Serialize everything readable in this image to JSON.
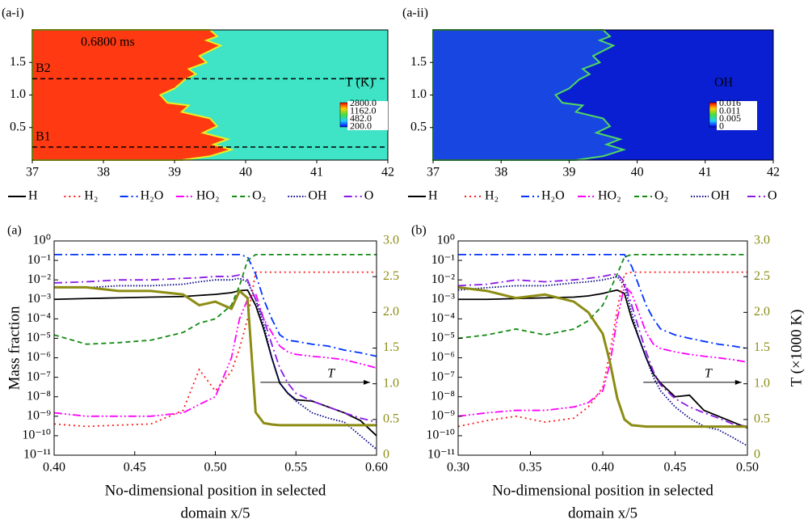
{
  "chart_data": [
    {
      "type": "contour",
      "panel_label": "(a-i)",
      "annotation": "0.6800 ms",
      "xlim": [
        37,
        42
      ],
      "xticks": [
        37,
        38,
        39,
        40,
        41,
        42
      ],
      "ylim": [
        0,
        2
      ],
      "yticks": [
        {
          "value": 0.5,
          "label": "0.5"
        },
        {
          "value": 1,
          "label": "1.0"
        },
        {
          "value": 1.5,
          "label": "1.5"
        }
      ],
      "colors": {
        "burnt": "#ff3a12",
        "unburnt": "#3fe3c6",
        "front": "#e8f020"
      },
      "lines": [
        {
          "label": "B2",
          "y": 1.25
        },
        {
          "label": "B1",
          "y": 0.2
        }
      ],
      "colorbar": {
        "title": "T (K)",
        "labels": [
          "2800.0",
          "1162.0",
          "482.0",
          "200.0"
        ]
      }
    },
    {
      "type": "contour",
      "panel_label": "(a-ii)",
      "xlim": [
        37,
        42
      ],
      "xticks": [
        37,
        38,
        39,
        40,
        41,
        42
      ],
      "ylim": [
        0,
        2
      ],
      "yticks": [
        {
          "value": 0.5,
          "label": "0.5"
        },
        {
          "value": 1,
          "label": "1.0"
        },
        {
          "value": 1.5,
          "label": "1.5"
        }
      ],
      "colors": {
        "burnt": "#1746e0",
        "unburnt": "#0a1fd2",
        "front": "#52d860"
      },
      "colorbar": {
        "title": "OH",
        "labels": [
          "0.016",
          "0.011",
          "0.005",
          "0"
        ]
      }
    },
    {
      "type": "line",
      "panel_label": "(a)",
      "ylabel": "Mass fraction",
      "xlabel": [
        "No-dimensional position in selected",
        "domain x/5"
      ],
      "annotation": "T",
      "x": [
        0.4,
        0.42,
        0.44,
        0.46,
        0.48,
        0.49,
        0.5,
        0.51,
        0.515,
        0.52,
        0.525,
        0.53,
        0.535,
        0.54,
        0.545,
        0.55,
        0.56,
        0.57,
        0.58,
        0.59,
        0.6
      ],
      "xlim": [
        0.4,
        0.6
      ],
      "xticks": [
        {
          "value": 0.4,
          "label": "0.40"
        },
        {
          "value": 0.45,
          "label": "0.45"
        },
        {
          "value": 0.5,
          "label": "0.50"
        },
        {
          "value": 0.55,
          "label": "0.55"
        },
        {
          "value": 0.6,
          "label": "0.60"
        }
      ],
      "ylog": true,
      "ylim": [
        1e-11,
        1
      ],
      "yticks": [
        {
          "value": 1,
          "label": "10⁰"
        },
        {
          "value": 0.1,
          "label": "10⁻¹"
        },
        {
          "value": 0.01,
          "label": "10⁻²"
        },
        {
          "value": 0.001,
          "label": "10⁻³"
        },
        {
          "value": 0.0001,
          "label": "10⁻⁴"
        },
        {
          "value": 1e-05,
          "label": "10⁻⁵"
        },
        {
          "value": 1e-06,
          "label": "10⁻⁶"
        },
        {
          "value": 1e-07,
          "label": "10⁻⁷"
        },
        {
          "value": 1e-08,
          "label": "10⁻⁸"
        },
        {
          "value": 1e-09,
          "label": "10⁻⁹"
        },
        {
          "value": 1e-10,
          "label": "10⁻¹⁰"
        },
        {
          "value": 1e-11,
          "label": "10⁻¹¹"
        }
      ],
      "y2lim": [
        0,
        3
      ],
      "y2ticks": [
        0,
        0.5,
        {
          "value": 1,
          "label": "1.0"
        },
        1.5,
        {
          "value": 2,
          "label": "2.0"
        },
        2.5,
        {
          "value": 3,
          "label": "3.0"
        }
      ],
      "series": [
        {
          "name": "H",
          "color": "#000000",
          "dash": "solid",
          "values": [
            0.001,
            0.0011,
            0.0012,
            0.0013,
            0.0014,
            0.0016,
            0.0018,
            0.0022,
            0.0028,
            0.003,
            0.0005,
            3e-05,
            1e-06,
            5e-08,
            1.5e-08,
            7e-09,
            6e-09,
            3e-09,
            1.5e-09,
            6e-10,
            1e-10
          ]
        },
        {
          "name": "H₂",
          "color": "#ff1a1a",
          "dash": "dot",
          "values": [
            4e-10,
            3e-10,
            3.5e-10,
            4e-10,
            2e-09,
            2.5e-07,
            2e-08,
            2e-07,
            3e-06,
            0.0001,
            0.025,
            0.025,
            0.025,
            0.025,
            0.025,
            0.025,
            0.025,
            0.025,
            0.025,
            0.025,
            0.025
          ]
        },
        {
          "name": "H₂O",
          "color": "#0033ff",
          "dash": "dashdot",
          "values": [
            0.2,
            0.2,
            0.2,
            0.2,
            0.2,
            0.2,
            0.2,
            0.2,
            0.2,
            0.15,
            0.02,
            0.001,
            0.0001,
            1.5e-05,
            8e-06,
            7e-06,
            5e-06,
            4e-06,
            2.5e-06,
            1.8e-06,
            1.2e-06
          ]
        },
        {
          "name": "HO₂",
          "color": "#ff00ff",
          "dash": "dashdotdot",
          "values": [
            1.5e-09,
            1e-09,
            1e-09,
            1e-09,
            1.5e-09,
            4e-09,
            1e-08,
            1e-06,
            0.0001,
            0.001,
            0.002,
            0.0001,
            2e-05,
            4e-06,
            2e-06,
            1.5e-06,
            1.2e-06,
            1e-06,
            8e-07,
            5e-07,
            3e-07
          ]
        },
        {
          "name": "O₂",
          "color": "#138a13",
          "dash": "dash",
          "values": [
            1.5e-05,
            5e-06,
            6e-06,
            8e-06,
            2e-05,
            6e-05,
            0.0001,
            0.0005,
            0.005,
            0.1,
            0.2,
            0.2,
            0.2,
            0.2,
            0.2,
            0.2,
            0.2,
            0.2,
            0.2,
            0.2,
            0.2
          ]
        },
        {
          "name": "OH",
          "color": "#000080",
          "dash": "finedot",
          "values": [
            0.004,
            0.004,
            0.005,
            0.005,
            0.006,
            0.008,
            0.01,
            0.01,
            0.012,
            0.008,
            0.001,
            5e-05,
            1e-06,
            5e-08,
            1.5e-08,
            6e-09,
            1.5e-09,
            8e-10,
            5e-10,
            1e-10,
            2e-11
          ]
        },
        {
          "name": "O",
          "color": "#8a1ae6",
          "dash": "dashdot",
          "values": [
            0.007,
            0.008,
            0.01,
            0.01,
            0.012,
            0.013,
            0.015,
            0.015,
            0.018,
            0.01,
            0.001,
            0.0001,
            5e-06,
            3e-07,
            5e-08,
            1.5e-08,
            6e-09,
            3e-09,
            1.5e-09,
            8e-10,
            5e-10
          ]
        },
        {
          "color": "#8c8c14",
          "dash": "thick",
          "axis": "y2",
          "values": [
            2.35,
            2.35,
            2.3,
            2.3,
            2.25,
            2.1,
            2.15,
            2.05,
            2.3,
            2.2,
            0.6,
            0.45,
            0.43,
            0.42,
            0.42,
            0.42,
            0.42,
            0.42,
            0.42,
            0.42,
            0.42
          ]
        }
      ]
    },
    {
      "type": "line",
      "panel_label": "(b)",
      "xlabel": [
        "No-dimensional position in selected",
        "domain x/5"
      ],
      "y2label": "T (×1000 K)",
      "annotation": "T",
      "x": [
        0.3,
        0.32,
        0.34,
        0.36,
        0.38,
        0.39,
        0.4,
        0.405,
        0.41,
        0.415,
        0.42,
        0.425,
        0.43,
        0.435,
        0.44,
        0.45,
        0.46,
        0.47,
        0.48,
        0.49,
        0.5
      ],
      "xlim": [
        0.3,
        0.5
      ],
      "xticks": [
        {
          "value": 0.3,
          "label": "0.30"
        },
        {
          "value": 0.35,
          "label": "0.35"
        },
        {
          "value": 0.4,
          "label": "0.40"
        },
        {
          "value": 0.45,
          "label": "0.45"
        },
        {
          "value": 0.5,
          "label": "0.50"
        }
      ],
      "ylog": true,
      "ylim": [
        1e-11,
        1
      ],
      "yticks": [
        {
          "value": 1,
          "label": "10⁰"
        },
        {
          "value": 0.1,
          "label": "10⁻¹"
        },
        {
          "value": 0.01,
          "label": "10⁻²"
        },
        {
          "value": 0.001,
          "label": "10⁻³"
        },
        {
          "value": 0.0001,
          "label": "10⁻⁴"
        },
        {
          "value": 1e-05,
          "label": "10⁻⁵"
        },
        {
          "value": 1e-06,
          "label": "10⁻⁶"
        },
        {
          "value": 1e-07,
          "label": "10⁻⁷"
        },
        {
          "value": 1e-08,
          "label": "10⁻⁸"
        },
        {
          "value": 1e-09,
          "label": "10⁻⁹"
        },
        {
          "value": 1e-10,
          "label": "10⁻¹⁰"
        },
        {
          "value": 1e-11,
          "label": "10⁻¹¹"
        }
      ],
      "y2lim": [
        0,
        3
      ],
      "y2ticks": [
        0,
        0.5,
        {
          "value": 1,
          "label": "1.0"
        },
        1.5,
        {
          "value": 2,
          "label": "2.0"
        },
        2.5,
        {
          "value": 3,
          "label": "3.0"
        }
      ],
      "series": [
        {
          "name": "H",
          "color": "#000000",
          "dash": "solid",
          "values": [
            0.001,
            0.001,
            0.0011,
            0.0012,
            0.0013,
            0.0015,
            0.002,
            0.0025,
            0.003,
            0.002,
            0.0001,
            1e-05,
            1e-06,
            1.5e-07,
            5e-08,
            1e-08,
            1.2e-08,
            2e-09,
            1e-09,
            5e-10,
            2.5e-10
          ]
        },
        {
          "name": "H₂",
          "color": "#ff1a1a",
          "dash": "dot",
          "values": [
            3e-10,
            6e-10,
            1e-09,
            5e-10,
            8e-10,
            3e-09,
            3e-08,
            2e-06,
            0.0003,
            0.02,
            0.025,
            0.025,
            0.025,
            0.025,
            0.025,
            0.025,
            0.025,
            0.025,
            0.025,
            0.025,
            0.025
          ]
        },
        {
          "name": "H₂O",
          "color": "#0033ff",
          "dash": "dashdot",
          "values": [
            0.2,
            0.2,
            0.2,
            0.2,
            0.2,
            0.2,
            0.2,
            0.2,
            0.2,
            0.2,
            0.05,
            0.005,
            0.0005,
            0.0001,
            3e-05,
            1.5e-05,
            1e-05,
            7e-06,
            5e-06,
            4e-06,
            3e-06
          ]
        },
        {
          "name": "HO₂",
          "color": "#ff00ff",
          "dash": "dashdotdot",
          "values": [
            1e-09,
            1.5e-09,
            2e-09,
            2e-09,
            3e-09,
            5e-09,
            2e-08,
            5e-07,
            0.0001,
            0.005,
            0.002,
            0.0002,
            2e-05,
            5e-06,
            3e-06,
            2e-06,
            1.5e-06,
            1.2e-06,
            1e-06,
            8e-07,
            6e-07
          ]
        },
        {
          "name": "O₂",
          "color": "#138a13",
          "dash": "dash",
          "values": [
            1e-05,
            1.5e-05,
            3e-05,
            1.5e-05,
            3e-05,
            8e-05,
            0.0005,
            0.003,
            0.02,
            0.15,
            0.2,
            0.2,
            0.2,
            0.2,
            0.2,
            0.2,
            0.2,
            0.2,
            0.2,
            0.2,
            0.2
          ]
        },
        {
          "name": "OH",
          "color": "#000080",
          "dash": "finedot",
          "values": [
            0.003,
            0.004,
            0.005,
            0.005,
            0.007,
            0.008,
            0.01,
            0.012,
            0.015,
            0.005,
            0.0002,
            1e-05,
            1e-06,
            1e-07,
            2e-08,
            3e-09,
            8e-10,
            3e-10,
            2e-10,
            8e-11,
            3e-11
          ]
        },
        {
          "name": "O",
          "color": "#8a1ae6",
          "dash": "dashdot",
          "values": [
            0.005,
            0.006,
            0.01,
            0.008,
            0.01,
            0.012,
            0.015,
            0.018,
            0.02,
            0.008,
            0.0005,
            3e-05,
            2e-06,
            2e-07,
            4e-08,
            8e-09,
            3e-09,
            1.5e-09,
            8e-10,
            4e-10,
            3e-10
          ]
        },
        {
          "color": "#8c8c14",
          "dash": "thick",
          "axis": "y2",
          "values": [
            2.35,
            2.3,
            2.2,
            2.25,
            2.15,
            2.0,
            1.7,
            1.3,
            0.8,
            0.5,
            0.42,
            0.41,
            0.4,
            0.4,
            0.4,
            0.4,
            0.4,
            0.4,
            0.4,
            0.4,
            0.4
          ]
        }
      ]
    }
  ]
}
